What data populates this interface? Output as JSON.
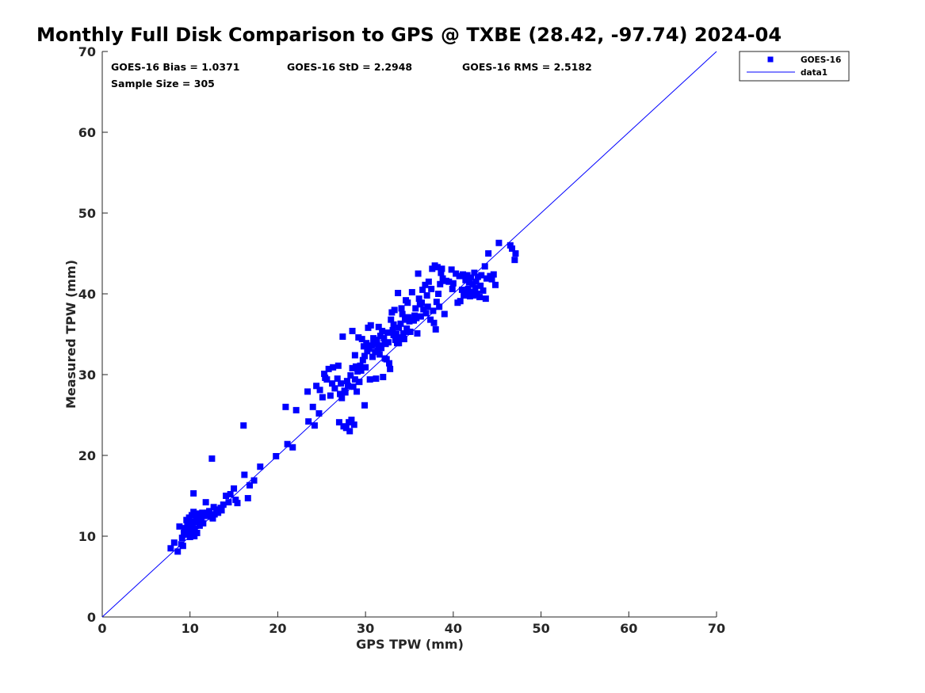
{
  "chart_data": {
    "type": "scatter",
    "title": "Monthly Full Disk Comparison to GPS @ TXBE (28.42, -97.74) 2024-04",
    "xlabel": "GPS TPW (mm)",
    "ylabel": "Measured TPW (mm)",
    "xlim": [
      0,
      70
    ],
    "ylim": [
      0,
      70
    ],
    "xticks": [
      "0",
      "10",
      "20",
      "30",
      "40",
      "50",
      "60",
      "70"
    ],
    "yticks": [
      "0",
      "10",
      "20",
      "30",
      "40",
      "50",
      "60",
      "70"
    ],
    "grid": false,
    "legend_position": "top-right outside",
    "stats": {
      "bias": "GOES-16 Bias = 1.0371",
      "std": "GOES-16 StD = 2.2948",
      "rms": "GOES-16 RMS = 2.5182",
      "sample": "Sample Size = 305"
    },
    "legend": [
      {
        "name": "GOES-16",
        "marker": "square",
        "color": "#0000ff"
      },
      {
        "name": "data1",
        "marker": "line",
        "color": "#0000ff"
      }
    ],
    "reference_line": {
      "name": "data1",
      "x": [
        0,
        70
      ],
      "y": [
        0,
        70
      ],
      "color": "#0000ff"
    },
    "series": [
      {
        "name": "GOES-16",
        "color": "#0000ff",
        "points": [
          [
            7.8,
            8.5
          ],
          [
            8.2,
            9.2
          ],
          [
            8.6,
            8.1
          ],
          [
            8.8,
            11.2
          ],
          [
            9.0,
            9.0
          ],
          [
            9.1,
            9.8
          ],
          [
            9.2,
            8.8
          ],
          [
            9.3,
            10.4
          ],
          [
            9.4,
            11.0
          ],
          [
            9.5,
            10.2
          ],
          [
            9.6,
            12.0
          ],
          [
            9.7,
            11.5
          ],
          [
            9.8,
            10.8
          ],
          [
            9.9,
            12.3
          ],
          [
            10.0,
            9.9
          ],
          [
            10.0,
            11.8
          ],
          [
            10.1,
            10.6
          ],
          [
            10.2,
            12.6
          ],
          [
            10.3,
            11.2
          ],
          [
            10.4,
            13.0
          ],
          [
            10.4,
            15.3
          ],
          [
            10.5,
            10.9
          ],
          [
            10.6,
            11.7
          ],
          [
            10.7,
            12.4
          ],
          [
            10.8,
            10.4
          ],
          [
            10.9,
            11.9
          ],
          [
            11.0,
            12.8
          ],
          [
            11.1,
            11.3
          ],
          [
            11.2,
            12.2
          ],
          [
            11.4,
            12.9
          ],
          [
            11.5,
            11.6
          ],
          [
            11.7,
            12.5
          ],
          [
            11.8,
            14.2
          ],
          [
            12.0,
            12.9
          ],
          [
            12.2,
            13.1
          ],
          [
            12.4,
            12.4
          ],
          [
            12.5,
            19.6
          ],
          [
            12.7,
            13.6
          ],
          [
            12.8,
            12.7
          ],
          [
            13.0,
            13.3
          ],
          [
            13.2,
            12.9
          ],
          [
            13.5,
            13.5
          ],
          [
            13.8,
            13.9
          ],
          [
            14.1,
            15.0
          ],
          [
            14.4,
            14.2
          ],
          [
            14.6,
            15.2
          ],
          [
            15.0,
            15.9
          ],
          [
            15.2,
            14.5
          ],
          [
            15.4,
            14.1
          ],
          [
            16.1,
            23.7
          ],
          [
            16.2,
            17.6
          ],
          [
            16.6,
            14.7
          ],
          [
            16.8,
            16.3
          ],
          [
            17.3,
            16.9
          ],
          [
            18.0,
            18.6
          ],
          [
            19.8,
            19.9
          ],
          [
            20.9,
            26.0
          ],
          [
            21.1,
            21.4
          ],
          [
            21.7,
            21.0
          ],
          [
            22.1,
            25.6
          ],
          [
            23.4,
            27.9
          ],
          [
            23.5,
            24.2
          ],
          [
            24.2,
            23.7
          ],
          [
            24.4,
            28.6
          ],
          [
            24.7,
            25.2
          ],
          [
            24.8,
            28.1
          ],
          [
            25.1,
            27.2
          ],
          [
            25.3,
            30.1
          ],
          [
            25.4,
            29.6
          ],
          [
            25.6,
            29.4
          ],
          [
            25.8,
            30.7
          ],
          [
            26.0,
            27.4
          ],
          [
            26.3,
            30.9
          ],
          [
            26.5,
            28.3
          ],
          [
            26.8,
            29.5
          ],
          [
            26.9,
            31.1
          ],
          [
            27.0,
            24.1
          ],
          [
            27.1,
            27.6
          ],
          [
            27.3,
            27.1
          ],
          [
            27.4,
            34.7
          ],
          [
            27.5,
            23.6
          ],
          [
            27.6,
            28.0
          ],
          [
            27.7,
            27.8
          ],
          [
            27.8,
            23.4
          ],
          [
            27.9,
            29.2
          ],
          [
            28.0,
            28.6
          ],
          [
            28.1,
            24.1
          ],
          [
            28.2,
            23.0
          ],
          [
            28.3,
            29.9
          ],
          [
            28.4,
            24.4
          ],
          [
            28.5,
            35.4
          ],
          [
            28.5,
            30.8
          ],
          [
            28.6,
            28.5
          ],
          [
            28.7,
            23.8
          ],
          [
            28.8,
            29.4
          ],
          [
            28.9,
            31.0
          ],
          [
            29.0,
            27.9
          ],
          [
            29.1,
            30.4
          ],
          [
            29.2,
            34.6
          ],
          [
            29.3,
            29.1
          ],
          [
            29.4,
            31.1
          ],
          [
            29.5,
            30.5
          ],
          [
            29.6,
            34.4
          ],
          [
            29.7,
            31.8
          ],
          [
            29.8,
            33.5
          ],
          [
            29.9,
            26.2
          ],
          [
            30.0,
            30.9
          ],
          [
            30.1,
            33.9
          ],
          [
            30.2,
            32.9
          ],
          [
            30.3,
            35.8
          ],
          [
            30.4,
            33.2
          ],
          [
            30.5,
            29.4
          ],
          [
            30.6,
            36.1
          ],
          [
            30.7,
            33.6
          ],
          [
            30.8,
            32.2
          ],
          [
            30.9,
            33.8
          ],
          [
            31.0,
            34.3
          ],
          [
            31.1,
            32.8
          ],
          [
            31.2,
            29.5
          ],
          [
            31.3,
            34.1
          ],
          [
            31.4,
            33.0
          ],
          [
            31.5,
            35.9
          ],
          [
            31.6,
            32.5
          ],
          [
            31.7,
            34.8
          ],
          [
            31.8,
            33.3
          ],
          [
            31.9,
            35.4
          ],
          [
            32.0,
            29.7
          ],
          [
            32.1,
            34.5
          ],
          [
            32.2,
            32.0
          ],
          [
            32.3,
            33.8
          ],
          [
            32.4,
            31.9
          ],
          [
            32.5,
            35.2
          ],
          [
            32.6,
            34.0
          ],
          [
            32.7,
            31.4
          ],
          [
            32.8,
            30.7
          ],
          [
            32.9,
            36.8
          ],
          [
            33.0,
            37.7
          ],
          [
            33.1,
            35.5
          ],
          [
            33.2,
            36.2
          ],
          [
            33.3,
            38.0
          ],
          [
            33.4,
            34.3
          ],
          [
            33.5,
            35.0
          ],
          [
            33.6,
            33.9
          ],
          [
            33.7,
            40.1
          ],
          [
            33.8,
            35.8
          ],
          [
            33.9,
            34.6
          ],
          [
            34.0,
            36.3
          ],
          [
            34.1,
            38.2
          ],
          [
            34.2,
            37.5
          ],
          [
            34.3,
            35.1
          ],
          [
            34.4,
            34.4
          ],
          [
            34.5,
            36.8
          ],
          [
            34.6,
            39.2
          ],
          [
            34.7,
            35.7
          ],
          [
            34.8,
            38.9
          ],
          [
            34.9,
            37.1
          ],
          [
            35.0,
            36.6
          ],
          [
            35.1,
            35.3
          ],
          [
            35.3,
            40.2
          ],
          [
            35.5,
            36.7
          ],
          [
            35.7,
            38.2
          ],
          [
            35.8,
            37.0
          ],
          [
            35.9,
            35.1
          ],
          [
            36.0,
            42.5
          ],
          [
            36.1,
            39.4
          ],
          [
            36.2,
            38.7
          ],
          [
            36.3,
            37.2
          ],
          [
            36.5,
            40.5
          ],
          [
            36.6,
            38.1
          ],
          [
            36.8,
            41.1
          ],
          [
            36.9,
            37.6
          ],
          [
            37.0,
            39.8
          ],
          [
            37.1,
            38.4
          ],
          [
            37.2,
            41.5
          ],
          [
            37.4,
            36.8
          ],
          [
            37.5,
            40.6
          ],
          [
            37.6,
            43.1
          ],
          [
            37.7,
            37.9
          ],
          [
            37.8,
            36.4
          ],
          [
            37.9,
            43.5
          ],
          [
            38.0,
            35.6
          ],
          [
            38.1,
            39.0
          ],
          [
            38.2,
            43.3
          ],
          [
            38.4,
            38.4
          ],
          [
            38.5,
            41.2
          ],
          [
            38.6,
            42.6
          ],
          [
            38.7,
            43.1
          ],
          [
            38.8,
            41.9
          ],
          [
            39.0,
            37.5
          ],
          [
            39.2,
            41.6
          ],
          [
            39.5,
            41.5
          ],
          [
            39.8,
            43.0
          ],
          [
            40.0,
            41.3
          ],
          [
            40.3,
            42.5
          ],
          [
            40.5,
            38.9
          ],
          [
            40.7,
            42.2
          ],
          [
            40.8,
            39.1
          ],
          [
            41.0,
            40.5
          ],
          [
            41.1,
            42.4
          ],
          [
            41.2,
            39.8
          ],
          [
            41.4,
            41.7
          ],
          [
            41.5,
            40.1
          ],
          [
            41.6,
            42.3
          ],
          [
            41.7,
            40.6
          ],
          [
            41.8,
            41.4
          ],
          [
            41.9,
            39.7
          ],
          [
            42.0,
            42.0
          ],
          [
            42.1,
            40.2
          ],
          [
            42.2,
            41.2
          ],
          [
            42.3,
            39.8
          ],
          [
            42.4,
            42.6
          ],
          [
            42.5,
            40.7
          ],
          [
            42.6,
            41.5
          ],
          [
            42.7,
            40.0
          ],
          [
            42.8,
            42.1
          ],
          [
            43.0,
            39.6
          ],
          [
            43.1,
            41.0
          ],
          [
            43.2,
            42.3
          ],
          [
            43.4,
            40.4
          ],
          [
            43.6,
            43.4
          ],
          [
            43.7,
            39.4
          ],
          [
            43.8,
            41.9
          ],
          [
            44.0,
            45.0
          ],
          [
            44.2,
            42.2
          ],
          [
            44.4,
            41.8
          ],
          [
            44.6,
            42.4
          ],
          [
            44.8,
            41.1
          ],
          [
            45.2,
            46.3
          ],
          [
            46.5,
            46.0
          ],
          [
            46.7,
            45.6
          ],
          [
            47.0,
            44.2
          ],
          [
            47.1,
            45.0
          ],
          [
            9.9,
            11.0
          ],
          [
            10.5,
            10.0
          ],
          [
            11.3,
            12.1
          ],
          [
            12.6,
            12.2
          ],
          [
            13.6,
            13.2
          ],
          [
            24.0,
            26.0
          ],
          [
            26.2,
            28.9
          ],
          [
            27.2,
            28.9
          ],
          [
            28.8,
            32.4
          ],
          [
            29.9,
            32.3
          ],
          [
            30.9,
            34.5
          ],
          [
            31.5,
            33.6
          ],
          [
            32.2,
            33.9
          ],
          [
            33.2,
            34.9
          ],
          [
            33.8,
            33.9
          ],
          [
            34.8,
            35.3
          ],
          [
            35.6,
            37.3
          ],
          [
            36.4,
            38.9
          ],
          [
            38.3,
            40.0
          ],
          [
            39.9,
            40.6
          ]
        ]
      }
    ]
  }
}
